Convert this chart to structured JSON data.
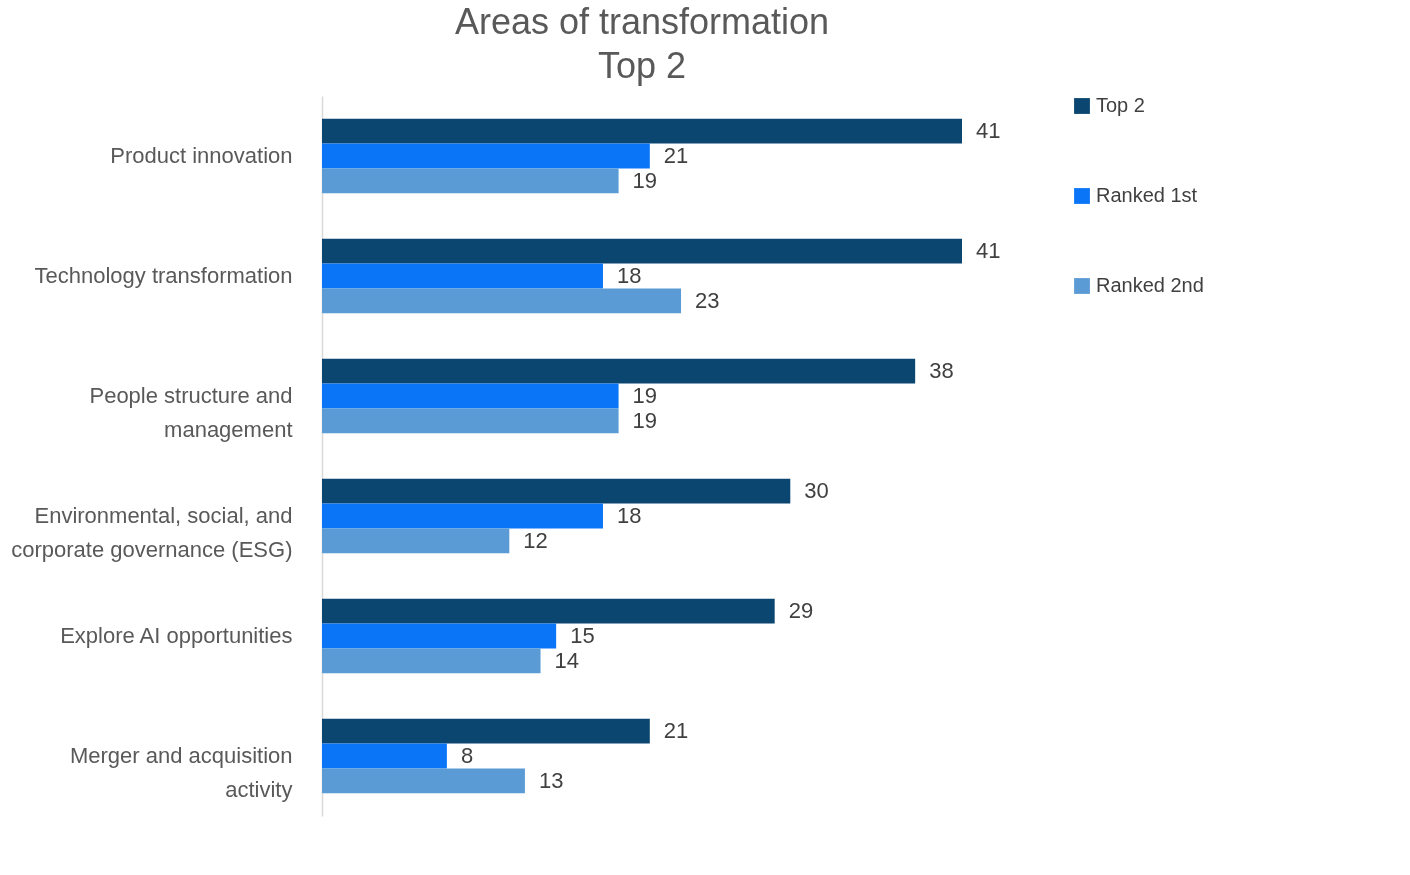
{
  "chart_data": {
    "type": "bar",
    "orientation": "horizontal",
    "title": "Areas of transformation",
    "subtitle": "Top 2",
    "categories": [
      "Product innovation",
      "Technology transformation",
      "People structure and management",
      "Environmental, social, and corporate governance (ESG)",
      "Explore AI opportunities",
      "Merger and acquisition activity"
    ],
    "series": [
      {
        "name": "Top 2",
        "color": "#0b4670",
        "values": [
          41,
          41,
          38,
          30,
          29,
          21
        ]
      },
      {
        "name": "Ranked 1st",
        "color": "#0a75f7",
        "values": [
          21,
          18,
          19,
          18,
          15,
          8
        ]
      },
      {
        "name": "Ranked 2nd",
        "color": "#5b9bd5",
        "values": [
          19,
          23,
          19,
          12,
          14,
          13
        ]
      }
    ],
    "data_labels": true,
    "legend": "right",
    "grid": false
  }
}
